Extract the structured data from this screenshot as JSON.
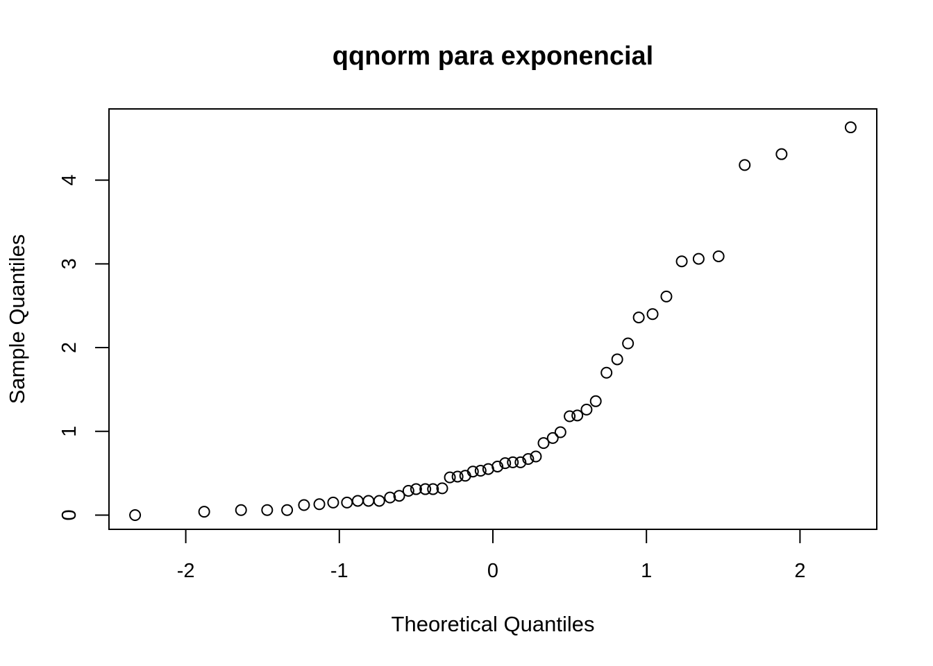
{
  "chart_data": {
    "type": "scatter",
    "title": "qqnorm para exponencial",
    "xlabel": "Theoretical Quantiles",
    "ylabel": "Sample Quantiles",
    "xlim": [
      -2.5,
      2.5
    ],
    "ylim": [
      -0.17,
      4.85
    ],
    "x_ticks": [
      -2,
      -1,
      0,
      1,
      2
    ],
    "x_tick_labels": [
      "-2",
      "-1",
      "0",
      "1",
      "2"
    ],
    "y_ticks": [
      0,
      1,
      2,
      3,
      4
    ],
    "y_tick_labels": [
      "0",
      "1",
      "2",
      "3",
      "4"
    ],
    "grid": false,
    "marker": "open-circle",
    "points": [
      {
        "x": -2.33,
        "y": 0.0
      },
      {
        "x": -1.88,
        "y": 0.04
      },
      {
        "x": -1.64,
        "y": 0.06
      },
      {
        "x": -1.47,
        "y": 0.06
      },
      {
        "x": -1.34,
        "y": 0.06
      },
      {
        "x": -1.23,
        "y": 0.12
      },
      {
        "x": -1.13,
        "y": 0.13
      },
      {
        "x": -1.04,
        "y": 0.15
      },
      {
        "x": -0.95,
        "y": 0.15
      },
      {
        "x": -0.88,
        "y": 0.17
      },
      {
        "x": -0.81,
        "y": 0.17
      },
      {
        "x": -0.74,
        "y": 0.17
      },
      {
        "x": -0.67,
        "y": 0.21
      },
      {
        "x": -0.61,
        "y": 0.23
      },
      {
        "x": -0.55,
        "y": 0.29
      },
      {
        "x": -0.5,
        "y": 0.31
      },
      {
        "x": -0.44,
        "y": 0.31
      },
      {
        "x": -0.39,
        "y": 0.31
      },
      {
        "x": -0.33,
        "y": 0.32
      },
      {
        "x": -0.28,
        "y": 0.45
      },
      {
        "x": -0.23,
        "y": 0.46
      },
      {
        "x": -0.18,
        "y": 0.47
      },
      {
        "x": -0.13,
        "y": 0.52
      },
      {
        "x": -0.08,
        "y": 0.53
      },
      {
        "x": -0.03,
        "y": 0.55
      },
      {
        "x": 0.03,
        "y": 0.58
      },
      {
        "x": 0.08,
        "y": 0.62
      },
      {
        "x": 0.13,
        "y": 0.63
      },
      {
        "x": 0.18,
        "y": 0.63
      },
      {
        "x": 0.23,
        "y": 0.67
      },
      {
        "x": 0.28,
        "y": 0.7
      },
      {
        "x": 0.33,
        "y": 0.86
      },
      {
        "x": 0.39,
        "y": 0.92
      },
      {
        "x": 0.44,
        "y": 0.99
      },
      {
        "x": 0.5,
        "y": 1.18
      },
      {
        "x": 0.55,
        "y": 1.19
      },
      {
        "x": 0.61,
        "y": 1.26
      },
      {
        "x": 0.67,
        "y": 1.36
      },
      {
        "x": 0.74,
        "y": 1.7
      },
      {
        "x": 0.81,
        "y": 1.86
      },
      {
        "x": 0.88,
        "y": 2.05
      },
      {
        "x": 0.95,
        "y": 2.36
      },
      {
        "x": 1.04,
        "y": 2.4
      },
      {
        "x": 1.13,
        "y": 2.61
      },
      {
        "x": 1.23,
        "y": 3.03
      },
      {
        "x": 1.34,
        "y": 3.06
      },
      {
        "x": 1.47,
        "y": 3.09
      },
      {
        "x": 1.64,
        "y": 4.18
      },
      {
        "x": 1.88,
        "y": 4.31
      },
      {
        "x": 2.33,
        "y": 4.63
      }
    ]
  }
}
